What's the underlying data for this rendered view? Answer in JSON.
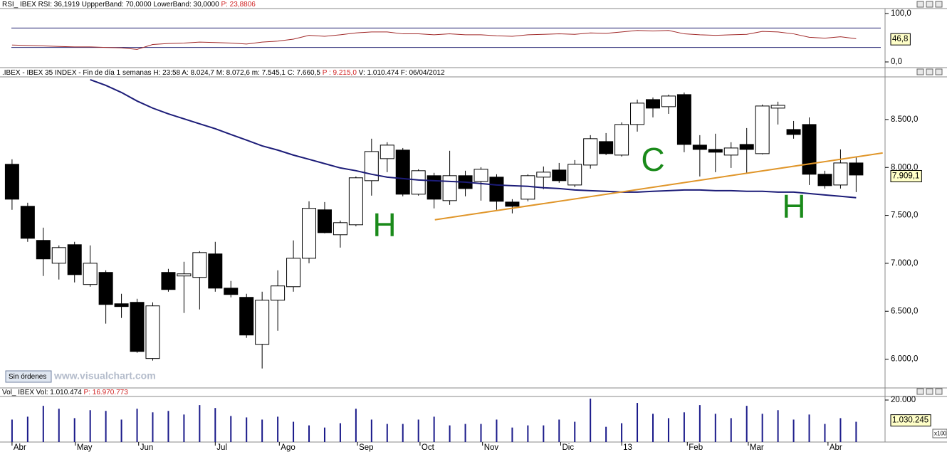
{
  "x_axis": {
    "xlim": [
      -0.77,
      55.85
    ],
    "xticks": [
      {
        "value": 0,
        "label": "Abr"
      },
      {
        "value": 4.05,
        "label": "May"
      },
      {
        "value": 8.1,
        "label": "Jun"
      },
      {
        "value": 13,
        "label": "Jul"
      },
      {
        "value": 17.1,
        "label": "Ago"
      },
      {
        "value": 22.1,
        "label": "Sep"
      },
      {
        "value": 26.1,
        "label": "Oct"
      },
      {
        "value": 30.1,
        "label": "Nov"
      },
      {
        "value": 35.1,
        "label": "Dic"
      },
      {
        "value": 39,
        "label": "13"
      },
      {
        "value": 43.2,
        "label": "Feb"
      },
      {
        "value": 47.1,
        "label": "Mar"
      },
      {
        "value": 52.2,
        "label": "Abr"
      }
    ]
  },
  "watermark": "www.visualchart.com",
  "status": "Sin órdenes",
  "chart_data": [
    {
      "type": "line",
      "header": "RSI_ IBEX RSI: 36,1919 UppperBand: 70,0000 LowerBand: 30,0000 ",
      "header_extra": "P: 23,8806",
      "ylim": [
        0,
        100
      ],
      "yticks": [
        {
          "value": 100,
          "label": "100,0"
        },
        {
          "value": 0,
          "label": "0,0"
        }
      ],
      "color": "#a02828",
      "values": [
        35,
        34,
        33,
        32,
        31,
        31,
        30,
        29,
        26,
        36,
        38,
        39,
        41,
        40,
        39,
        37,
        41,
        43,
        47,
        55,
        53,
        56,
        60,
        62,
        62,
        58,
        58,
        56,
        58,
        56,
        56,
        54,
        53,
        56,
        57,
        58,
        57,
        60,
        59,
        62,
        65,
        64,
        65,
        58,
        56,
        55,
        56,
        57,
        63,
        62,
        58,
        51,
        49,
        52,
        48
      ],
      "bands": [
        70,
        30
      ],
      "band_color": "#202070",
      "last_label": {
        "value": 46.8,
        "label": "46,8"
      }
    },
    {
      "type": "candlestick",
      "header": ".IBEX - IBEX 35 INDEX - Fin de día 1 semanas H: 23:58 A: 8.024,7 M: 8.072,6 m: 7.545,1 C: 7.660,5 ",
      "header_extra": "P : 9.215,0",
      "header_tail": " V: 1.010.474 F: 06/04/2012",
      "ylim": [
        5700,
        8930
      ],
      "yticks": [
        {
          "value": 8500,
          "label": "8.500,0"
        },
        {
          "value": 8000,
          "label": "8.000,0"
        },
        {
          "value": 7500,
          "label": "7.500,0"
        },
        {
          "value": 7000,
          "label": "7.000,0"
        },
        {
          "value": 6500,
          "label": "6.500,0"
        },
        {
          "value": 6000,
          "label": "6.000,0"
        }
      ],
      "open": [
        8033,
        7595,
        7239,
        7001,
        7194,
        6779,
        6905,
        6578,
        6593,
        6007,
        6905,
        6868,
        6853,
        7098,
        6741,
        6645,
        6155,
        6615,
        6756,
        7053,
        7558,
        7298,
        7402,
        7862,
        8092,
        8181,
        7721,
        7914,
        7654,
        7914,
        7854,
        7899,
        7639,
        7669,
        7899,
        7973,
        7817,
        8025,
        8270,
        8129,
        8448,
        8708,
        8634,
        8760,
        8233,
        8188,
        8129,
        8240,
        8144,
        8619,
        8396,
        8448,
        7929,
        7817,
        8047
      ],
      "high": [
        8085,
        7632,
        7372,
        7187,
        7224,
        7187,
        6927,
        6682,
        6630,
        6593,
        6942,
        7016,
        7127,
        7224,
        6816,
        6682,
        6704,
        6927,
        7239,
        7647,
        7639,
        7446,
        7906,
        8300,
        8263,
        8203,
        7981,
        7944,
        8174,
        7966,
        8003,
        7929,
        7669,
        7929,
        8010,
        8047,
        8077,
        8337,
        8359,
        8470,
        8708,
        8730,
        8760,
        8782,
        8337,
        8352,
        8263,
        8411,
        8656,
        8686,
        8485,
        8522,
        7966,
        8188,
        8114
      ],
      "low": [
        7558,
        7224,
        6868,
        6831,
        6801,
        6756,
        6371,
        6430,
        6066,
        5985,
        6704,
        6482,
        6519,
        6704,
        6645,
        6222,
        5903,
        6296,
        6704,
        7001,
        7313,
        7164,
        7387,
        7706,
        7951,
        7699,
        7706,
        7573,
        7610,
        7699,
        7654,
        7558,
        7521,
        7647,
        7773,
        7840,
        7795,
        7988,
        8129,
        8114,
        8374,
        8522,
        8559,
        8159,
        7906,
        7951,
        7995,
        7936,
        8136,
        8448,
        8300,
        7817,
        7780,
        7780,
        7743
      ],
      "close": [
        7669,
        7261,
        7046,
        7164,
        6882,
        7001,
        6571,
        6549,
        6081,
        6556,
        6727,
        6890,
        7112,
        6741,
        6675,
        6252,
        6615,
        6764,
        7053,
        7573,
        7320,
        7424,
        7892,
        8166,
        8233,
        7721,
        7966,
        7669,
        7914,
        7780,
        7981,
        7647,
        7595,
        7914,
        7951,
        7862,
        8033,
        8300,
        8144,
        8448,
        8671,
        8619,
        8745,
        8240,
        8188,
        8159,
        8203,
        8188,
        8641,
        8648,
        8344,
        7929,
        7810,
        8047,
        7921
      ],
      "up_color": "#ffffff",
      "down_color": "#000000",
      "ma": {
        "color": "#1c1c78",
        "values": [
          null,
          null,
          null,
          null,
          null,
          8916,
          8856,
          8782,
          8693,
          8619,
          8559,
          8507,
          8455,
          8404,
          8344,
          8285,
          8225,
          8181,
          8129,
          8085,
          8040,
          7995,
          7966,
          7929,
          7899,
          7884,
          7869,
          7862,
          7854,
          7847,
          7832,
          7817,
          7810,
          7803,
          7788,
          7780,
          7765,
          7758,
          7751,
          7743,
          7743,
          7751,
          7758,
          7765,
          7765,
          7758,
          7758,
          7751,
          7751,
          7743,
          7743,
          7728,
          7713,
          7699,
          7684
        ]
      },
      "trendline": {
        "color": "#e0962a",
        "x": [
          27.05,
          55.7
        ],
        "values": [
          7454,
          8151
        ]
      },
      "annotations": [
        "H",
        "C",
        "H"
      ],
      "last_label": {
        "value": 7909.1,
        "label": "7.909,1"
      }
    },
    {
      "type": "bar",
      "header": "Vol_ IBEX Vol: 1.010.474 ",
      "header_extra": "P: 16.970.773",
      "unit": "x100",
      "ylim": [
        0,
        20000
      ],
      "yticks": [
        {
          "value": 20000,
          "label": "20.000"
        }
      ],
      "color": "#1a1a8a",
      "values": [
        10690,
        12070,
        17240,
        15860,
        11380,
        15170,
        14830,
        10690,
        15860,
        14140,
        14830,
        13100,
        17590,
        16210,
        12410,
        11720,
        10690,
        12070,
        9650,
        7930,
        6900,
        8970,
        15860,
        10690,
        8620,
        8620,
        10690,
        12070,
        7930,
        8620,
        8620,
        10690,
        6900,
        7930,
        7930,
        10690,
        9650,
        20690,
        7240,
        8970,
        18620,
        13450,
        11380,
        14140,
        17590,
        13450,
        11380,
        17240,
        13450,
        15170,
        10690,
        13100,
        8620,
        11380,
        9650
      ],
      "last_label": {
        "value": 10302.45,
        "label": "1.030.245"
      }
    }
  ]
}
